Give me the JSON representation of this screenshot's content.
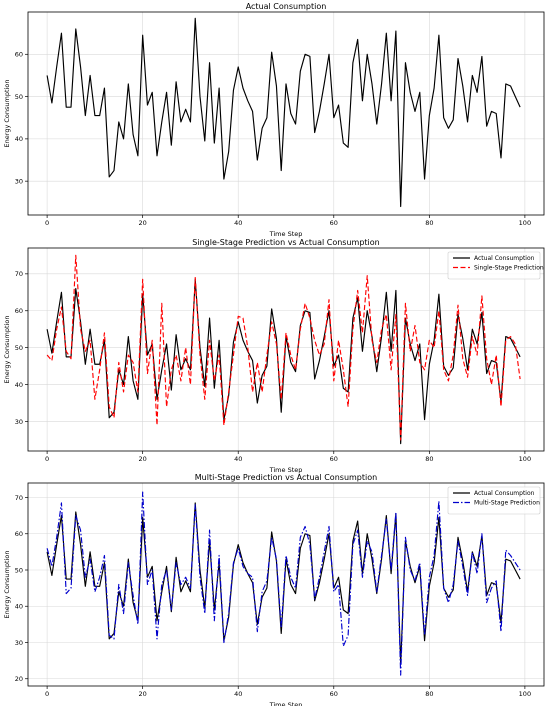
{
  "chart_data": [
    {
      "type": "line",
      "title": "Actual Consumption",
      "xlabel": "Time Step",
      "ylabel": "Energy Consumption",
      "xlim": [
        -4,
        104
      ],
      "ylim": [
        22,
        70
      ],
      "xticks": [
        0,
        20,
        40,
        60,
        80,
        100
      ],
      "yticks": [
        30,
        40,
        50,
        60
      ],
      "grid": true,
      "legend": null,
      "series": [
        {
          "key": "actual",
          "color": "#000000",
          "style": "solid",
          "values": [
            55,
            48.5,
            57,
            65,
            47.5,
            47.5,
            66,
            57,
            45.5,
            55,
            45.5,
            45.5,
            52,
            31,
            32.5,
            44,
            40,
            53,
            41,
            36,
            64.5,
            48,
            51,
            36,
            44,
            51,
            38.5,
            53.5,
            44,
            47,
            44,
            68.5,
            50,
            39.5,
            58,
            39,
            52,
            30.5,
            37,
            51.5,
            57,
            52,
            49,
            46.5,
            35,
            42.5,
            45,
            60.5,
            52.5,
            32.5,
            53,
            46,
            43.5,
            56,
            60,
            59.5,
            41.5,
            46.5,
            53,
            60,
            45,
            48,
            39,
            38,
            58,
            63.5,
            49,
            60,
            53,
            43.5,
            53,
            65,
            49,
            65.5,
            24,
            58,
            51,
            46.5,
            51,
            30.5,
            45.5,
            52,
            64.5,
            45,
            42.5,
            44.5,
            59,
            52.5,
            44,
            55,
            51,
            59.5,
            43,
            46.5,
            46,
            35.5,
            53,
            52.5,
            50,
            47.5
          ]
        }
      ]
    },
    {
      "type": "line",
      "title": "Single-Stage Prediction vs Actual Consumption",
      "xlabel": "Time Step",
      "ylabel": "Energy Consumption",
      "xlim": [
        -4,
        104
      ],
      "ylim": [
        22,
        77
      ],
      "xticks": [
        0,
        20,
        40,
        60,
        80,
        100
      ],
      "yticks": [
        30,
        40,
        50,
        60,
        70
      ],
      "grid": true,
      "legend": "top-right",
      "series": [
        {
          "key": "actual",
          "name": "Actual Consumption",
          "color": "#000000",
          "style": "solid",
          "values": [
            55,
            48.5,
            57,
            65,
            47.5,
            47.5,
            66,
            57,
            45.5,
            55,
            45.5,
            45.5,
            52,
            31,
            32.5,
            44,
            40,
            53,
            41,
            36,
            64.5,
            48,
            51,
            36,
            44,
            51,
            38.5,
            53.5,
            44,
            47,
            44,
            68.5,
            50,
            39.5,
            58,
            39,
            52,
            30.5,
            37,
            51.5,
            57,
            52,
            49,
            46.5,
            35,
            42.5,
            45,
            60.5,
            52.5,
            32.5,
            53,
            46,
            43.5,
            56,
            60,
            59.5,
            41.5,
            46.5,
            53,
            60,
            45,
            48,
            39,
            38,
            58,
            63.5,
            49,
            60,
            53,
            43.5,
            53,
            65,
            49,
            65.5,
            24,
            58,
            51,
            46.5,
            51,
            30.5,
            45.5,
            52,
            64.5,
            45,
            42.5,
            44.5,
            59,
            52.5,
            44,
            55,
            51,
            59.5,
            43,
            46.5,
            46,
            35.5,
            53,
            52.5,
            50,
            47.5
          ]
        },
        {
          "key": "single",
          "name": "Single-Stage Prediction",
          "color": "#ff0000",
          "style": "dashed",
          "values": [
            48,
            46.5,
            55,
            61,
            49,
            47,
            75,
            55,
            49,
            52,
            36,
            44,
            54,
            34,
            31,
            46,
            38,
            48,
            46,
            38,
            68.5,
            43,
            52,
            29,
            62,
            34,
            44,
            48,
            41,
            50,
            40,
            69,
            48,
            36,
            52,
            41,
            48,
            29,
            38,
            48,
            58.5,
            58,
            50,
            38,
            46,
            38,
            48,
            57,
            51,
            36,
            54,
            48,
            44,
            55,
            62,
            58,
            52,
            48,
            51,
            63,
            41,
            52,
            44,
            34,
            55,
            65.5,
            54,
            69.5,
            52,
            46,
            55,
            59,
            44,
            59,
            25,
            62,
            49,
            56,
            46,
            44,
            52,
            50,
            60,
            44,
            41,
            48,
            61.5,
            47,
            42,
            53,
            48,
            64,
            47,
            40,
            48,
            34,
            52,
            53,
            51,
            41.5
          ]
        }
      ]
    },
    {
      "type": "line",
      "title": "Multi-Stage Prediction vs Actual Consumption",
      "xlabel": "Time Step",
      "ylabel": "Energy Consumption",
      "xlim": [
        -4,
        104
      ],
      "ylim": [
        18,
        74
      ],
      "xticks": [
        0,
        20,
        40,
        60,
        80,
        100
      ],
      "yticks": [
        20,
        30,
        40,
        50,
        60,
        70
      ],
      "grid": true,
      "legend": "top-right",
      "series": [
        {
          "key": "actual",
          "name": "Actual Consumption",
          "color": "#000000",
          "style": "solid",
          "values": [
            55,
            48.5,
            57,
            65,
            47.5,
            47.5,
            66,
            57,
            45.5,
            55,
            45.5,
            45.5,
            52,
            31,
            32.5,
            44,
            40,
            53,
            41,
            36,
            64.5,
            48,
            51,
            36,
            44,
            51,
            38.5,
            53.5,
            44,
            47,
            44,
            68.5,
            50,
            39.5,
            58,
            39,
            52,
            30.5,
            37,
            51.5,
            57,
            52,
            49,
            46.5,
            35,
            42.5,
            45,
            60.5,
            52.5,
            32.5,
            53,
            46,
            43.5,
            56,
            60,
            59.5,
            41.5,
            46.5,
            53,
            60,
            45,
            48,
            39,
            38,
            58,
            63.5,
            49,
            60,
            53,
            43.5,
            53,
            65,
            49,
            65.5,
            24,
            58,
            51,
            46.5,
            51,
            30.5,
            45.5,
            52,
            64.5,
            45,
            42.5,
            44.5,
            59,
            52.5,
            44,
            55,
            51,
            59.5,
            43,
            46.5,
            46,
            35.5,
            53,
            52.5,
            50,
            47.5
          ]
        },
        {
          "key": "multi",
          "name": "Multi-Stage Prediction",
          "color": "#0000cc",
          "style": "dashdot",
          "values": [
            56,
            51,
            59,
            68.5,
            43.5,
            45,
            65,
            61,
            48,
            53,
            44,
            48,
            54,
            32,
            31,
            46,
            38,
            52,
            43,
            35,
            71.5,
            46,
            50,
            31,
            46,
            50,
            39,
            52,
            46,
            48,
            45,
            68,
            48,
            38,
            61,
            36,
            54,
            30,
            38,
            52,
            56,
            51,
            49,
            48,
            33,
            44,
            47,
            59,
            53,
            34,
            54,
            48,
            45,
            59,
            62,
            57,
            42,
            48,
            55,
            62,
            44,
            46,
            29,
            32,
            57,
            61,
            48,
            58,
            55,
            44,
            54,
            64,
            50,
            66,
            21,
            59,
            50,
            47,
            52,
            32,
            48,
            54,
            69,
            45,
            41,
            46,
            58,
            51,
            43,
            55,
            49,
            60,
            41,
            45,
            47,
            33,
            55.5,
            54,
            52,
            50
          ]
        }
      ]
    }
  ]
}
